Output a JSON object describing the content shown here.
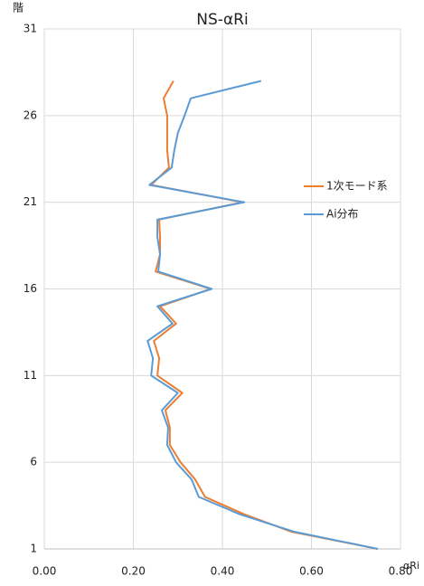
{
  "chart_data": {
    "type": "line",
    "title": "NS-αRi",
    "ylabel": "階",
    "xlabel": "αRi",
    "y": [
      1,
      2,
      3,
      4,
      5,
      6,
      7,
      8,
      9,
      10,
      11,
      12,
      13,
      14,
      15,
      16,
      17,
      18,
      19,
      20,
      21,
      22,
      23,
      24,
      25,
      26,
      27,
      28
    ],
    "series": [
      {
        "name": "1次モード系",
        "color": "#ED7D31",
        "values": [
          0.749,
          0.554,
          0.449,
          0.361,
          0.339,
          0.306,
          0.282,
          0.282,
          0.272,
          0.31,
          0.254,
          0.258,
          0.246,
          0.296,
          0.26,
          0.374,
          0.25,
          0.26,
          0.26,
          0.258,
          0.445,
          0.24,
          0.28,
          0.276,
          0.276,
          0.276,
          0.268,
          0.29
        ]
      },
      {
        "name": "Ai分布",
        "color": "#5B9BD5",
        "values": [
          0.749,
          0.56,
          0.439,
          0.347,
          0.331,
          0.296,
          0.276,
          0.278,
          0.264,
          0.3,
          0.24,
          0.244,
          0.232,
          0.288,
          0.254,
          0.376,
          0.256,
          0.26,
          0.254,
          0.254,
          0.449,
          0.236,
          0.286,
          0.292,
          0.3,
          0.315,
          0.329,
          0.487
        ]
      }
    ],
    "xlim": [
      0,
      0.8
    ],
    "xticks": [
      {
        "value": 0,
        "label": "0.00"
      },
      {
        "value": 0.2,
        "label": "0.20"
      },
      {
        "value": 0.4,
        "label": "0.40"
      },
      {
        "value": 0.6,
        "label": "0.60"
      },
      {
        "value": 0.8,
        "label": "0.80"
      }
    ],
    "ylim": [
      1,
      31
    ],
    "yticks": [
      1,
      6,
      11,
      16,
      21,
      26,
      31
    ],
    "grid": true,
    "legend": "right"
  }
}
